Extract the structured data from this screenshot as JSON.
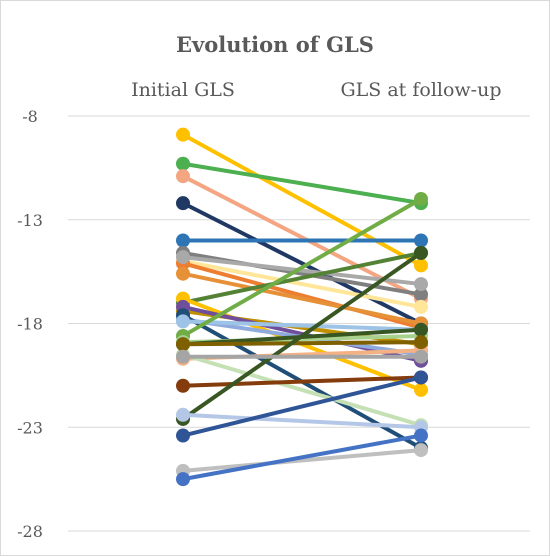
{
  "chart_data": {
    "type": "line",
    "title": "Evolution of GLS",
    "categories": [
      "Initial GLS",
      "GLS at follow-up"
    ],
    "xlabel": "",
    "ylabel": "",
    "ylim": [
      -28,
      -6
    ],
    "yticks": [
      -8,
      -13,
      -18,
      -23,
      -28
    ],
    "ytick_labels": [
      "-8",
      "-13",
      "-18",
      "-23",
      "-28"
    ],
    "grid": true,
    "legend": "none",
    "series": [
      {
        "color": "#FFC000",
        "values": [
          -8.9,
          -15.2
        ]
      },
      {
        "color": "#4CAF50",
        "values": [
          -10.3,
          -12.2
        ]
      },
      {
        "color": "#F4A582",
        "values": [
          -10.9,
          -16.8
        ]
      },
      {
        "color": "#1F3864",
        "values": [
          -12.2,
          -18.0
        ]
      },
      {
        "color": "#2E75B6",
        "values": [
          -14.0,
          -14.0
        ]
      },
      {
        "color": "#7F7F7F",
        "values": [
          -14.6,
          -16.6
        ]
      },
      {
        "color": "#FFE699",
        "values": [
          -15.0,
          -17.2
        ]
      },
      {
        "color": "#ED7D31",
        "values": [
          -15.1,
          -18.2
        ]
      },
      {
        "color": "#E69138",
        "values": [
          -15.6,
          -18.0
        ]
      },
      {
        "color": "#A9A9A9",
        "values": [
          -14.8,
          -16.1
        ]
      },
      {
        "color": "#548235",
        "values": [
          -17.0,
          -14.6
        ]
      },
      {
        "color": "#FFC000",
        "values": [
          -16.8,
          -21.2
        ]
      },
      {
        "color": "#BF9000",
        "values": [
          -17.4,
          -19.0
        ]
      },
      {
        "color": "#6F4E9C",
        "values": [
          -17.2,
          -19.8
        ]
      },
      {
        "color": "#8FAADC",
        "values": [
          -17.8,
          -19.5
        ]
      },
      {
        "color": "#1F4E79",
        "values": [
          -17.6,
          -24.0
        ]
      },
      {
        "color": "#9DC3E6",
        "values": [
          -17.9,
          -18.3
        ]
      },
      {
        "color": "#70AD47",
        "values": [
          -18.6,
          -12.0
        ]
      },
      {
        "color": "#A9D18E",
        "values": [
          -18.9,
          -18.6
        ]
      },
      {
        "color": "#375623",
        "values": [
          -19.0,
          -18.3
        ]
      },
      {
        "color": "#F4B183",
        "values": [
          -19.7,
          -19.3
        ]
      },
      {
        "color": "#C5E0B4",
        "values": [
          -19.5,
          -22.9
        ]
      },
      {
        "color": "#7F6000",
        "values": [
          -19.0,
          -18.9
        ]
      },
      {
        "color": "#843C0C",
        "values": [
          -21.0,
          -20.6
        ]
      },
      {
        "color": "#385723",
        "values": [
          -22.6,
          -14.6
        ]
      },
      {
        "color": "#B4C7E7",
        "values": [
          -22.4,
          -23.0
        ]
      },
      {
        "color": "#2F5597",
        "values": [
          -23.4,
          -20.6
        ]
      },
      {
        "color": "#BFBFBF",
        "values": [
          -25.1,
          -24.1
        ]
      },
      {
        "color": "#4472C4",
        "values": [
          -25.5,
          -23.4
        ]
      },
      {
        "color": "#A5A5A5",
        "values": [
          -19.6,
          -19.6
        ]
      }
    ]
  }
}
